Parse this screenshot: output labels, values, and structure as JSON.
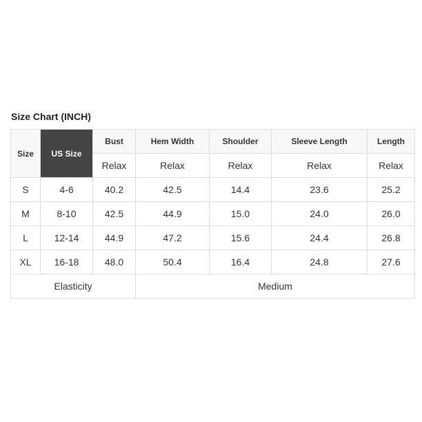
{
  "title": "Size Chart (INCH)",
  "headers": {
    "size": "Size",
    "us_size": "US Size",
    "cols": [
      "Bust",
      "Hem Width",
      "Shoulder",
      "Sleeve Length",
      "Length"
    ],
    "sub": [
      "Relax",
      "Relax",
      "Relax",
      "Relax",
      "Relax"
    ]
  },
  "rows": [
    [
      "S",
      "4-6",
      "40.2",
      "42.5",
      "14.4",
      "23.6",
      "25.2"
    ],
    [
      "M",
      "8-10",
      "42.5",
      "44.9",
      "15.0",
      "24.0",
      "26.0"
    ],
    [
      "L",
      "12-14",
      "44.9",
      "47.2",
      "15.6",
      "24.4",
      "26.8"
    ],
    [
      "XL",
      "16-18",
      "48.0",
      "50.4",
      "16.4",
      "24.8",
      "27.6"
    ]
  ],
  "footer": {
    "label": "Elasticity",
    "value": "Medium"
  }
}
